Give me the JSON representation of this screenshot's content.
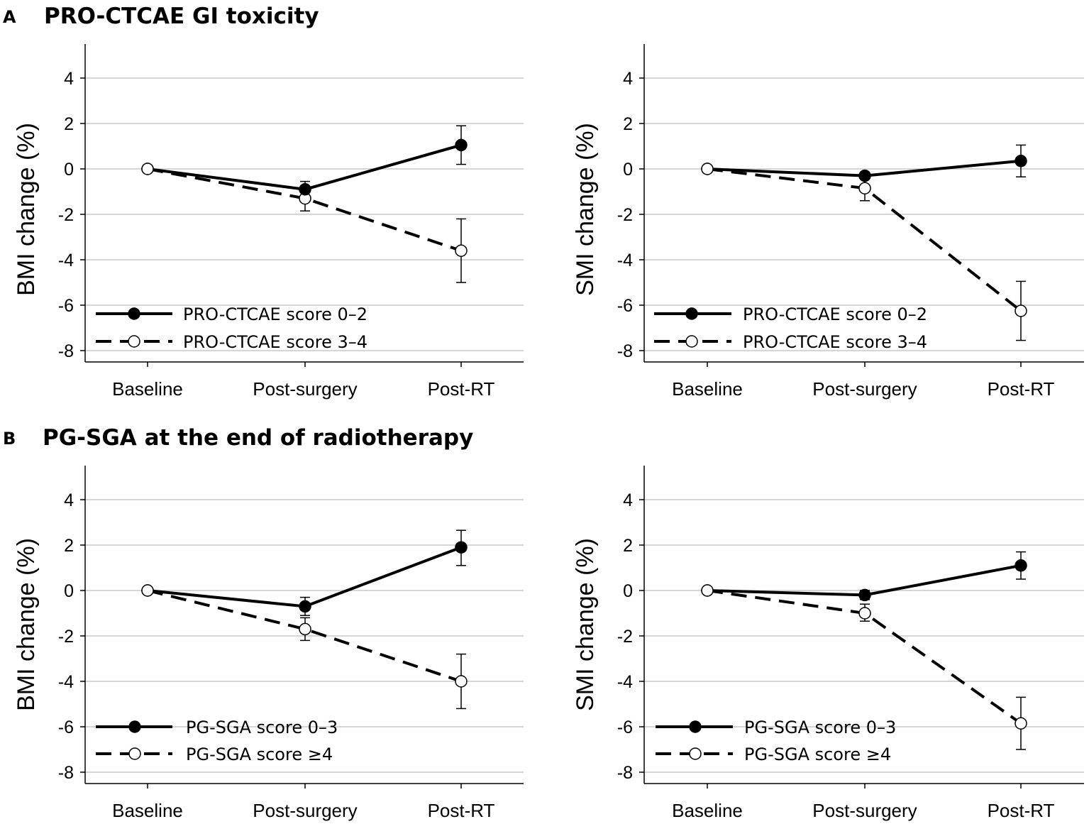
{
  "sections": [
    {
      "letter": "A",
      "title": "PRO-CTCAE GI toxicity"
    },
    {
      "letter": "B",
      "title": "PG-SGA at the end of radiotherapy"
    }
  ],
  "chart_data": [
    {
      "type": "line",
      "section": "A",
      "ylabel": "BMI change (%)",
      "xlabel": "",
      "categories": [
        "Baseline",
        "Post-surgery",
        "Post-RT"
      ],
      "ylim": [
        -8.5,
        5.5
      ],
      "yticks": [
        -8,
        -6,
        -4,
        -2,
        0,
        2,
        4
      ],
      "grid": true,
      "legend_position": "bottom-left",
      "series": [
        {
          "name": "PRO-CTCAE score 0–2",
          "style": "solid",
          "marker": "filled",
          "values": [
            0,
            -0.9,
            1.05
          ],
          "err_low": [
            0,
            -1.3,
            0.2
          ],
          "err_high": [
            0,
            -0.55,
            1.9
          ]
        },
        {
          "name": "PRO-CTCAE score 3–4",
          "style": "dashed",
          "marker": "open",
          "values": [
            0,
            -1.3,
            -3.6
          ],
          "err_low": [
            0,
            -1.85,
            -5.0
          ],
          "err_high": [
            0,
            -0.75,
            -2.2
          ]
        }
      ]
    },
    {
      "type": "line",
      "section": "A",
      "ylabel": "SMI change (%)",
      "xlabel": "",
      "categories": [
        "Baseline",
        "Post-surgery",
        "Post-RT"
      ],
      "ylim": [
        -8.5,
        5.5
      ],
      "yticks": [
        -8,
        -6,
        -4,
        -2,
        0,
        2,
        4
      ],
      "grid": true,
      "legend_position": "bottom-left",
      "series": [
        {
          "name": "PRO-CTCAE score 0–2",
          "style": "solid",
          "marker": "filled",
          "values": [
            0,
            -0.3,
            0.35
          ],
          "err_low": [
            0,
            -0.45,
            -0.35
          ],
          "err_high": [
            0,
            -0.15,
            1.05
          ]
        },
        {
          "name": "PRO-CTCAE score 3–4",
          "style": "dashed",
          "marker": "open",
          "values": [
            0,
            -0.85,
            -6.25
          ],
          "err_low": [
            0,
            -1.4,
            -7.55
          ],
          "err_high": [
            0,
            -0.3,
            -4.95
          ]
        }
      ]
    },
    {
      "type": "line",
      "section": "B",
      "ylabel": "BMI change (%)",
      "xlabel": "",
      "categories": [
        "Baseline",
        "Post-surgery",
        "Post-RT"
      ],
      "ylim": [
        -8.5,
        5.5
      ],
      "yticks": [
        -8,
        -6,
        -4,
        -2,
        0,
        2,
        4
      ],
      "grid": true,
      "legend_position": "bottom-left",
      "series": [
        {
          "name": "PG-SGA score 0–3",
          "style": "solid",
          "marker": "filled",
          "values": [
            0,
            -0.7,
            1.9
          ],
          "err_low": [
            0,
            -1.1,
            1.1
          ],
          "err_high": [
            0,
            -0.3,
            2.65
          ]
        },
        {
          "name": "PG-SGA score ≥4",
          "style": "dashed",
          "marker": "open",
          "values": [
            0,
            -1.7,
            -4.0
          ],
          "err_low": [
            0,
            -2.2,
            -5.2
          ],
          "err_high": [
            0,
            -1.2,
            -2.8
          ]
        }
      ]
    },
    {
      "type": "line",
      "section": "B",
      "ylabel": "SMI change (%)",
      "xlabel": "",
      "categories": [
        "Baseline",
        "Post-surgery",
        "Post-RT"
      ],
      "ylim": [
        -8.5,
        5.5
      ],
      "yticks": [
        -8,
        -6,
        -4,
        -2,
        0,
        2,
        4
      ],
      "grid": true,
      "legend_position": "bottom-left",
      "series": [
        {
          "name": "PG-SGA score 0–3",
          "style": "solid",
          "marker": "filled",
          "values": [
            0,
            -0.2,
            1.1
          ],
          "err_low": [
            0,
            -0.4,
            0.5
          ],
          "err_high": [
            0,
            0.0,
            1.7
          ]
        },
        {
          "name": "PG-SGA score ≥4",
          "style": "dashed",
          "marker": "open",
          "values": [
            0,
            -1.0,
            -5.85
          ],
          "err_low": [
            0,
            -1.35,
            -7.0
          ],
          "err_high": [
            0,
            -0.6,
            -4.7
          ]
        }
      ]
    }
  ]
}
